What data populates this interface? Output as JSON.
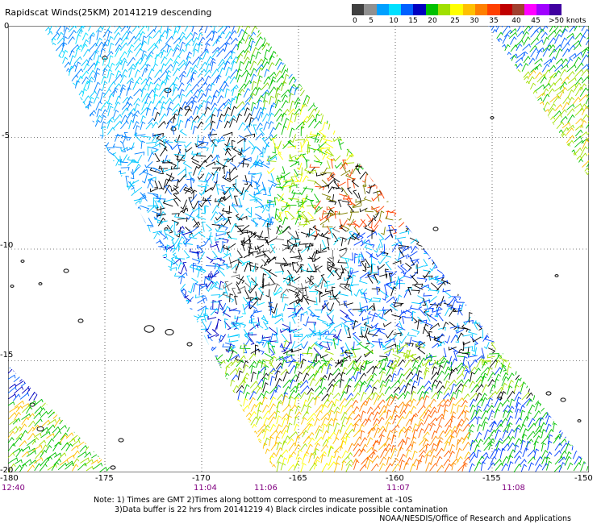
{
  "title": "Rapidscat Winds(25KM) 20141219 descending",
  "legend": {
    "colors": [
      "#404040",
      "#909090",
      "#00a0ff",
      "#00e0ff",
      "#0060ff",
      "#0000c0",
      "#00c000",
      "#a0e000",
      "#ffff00",
      "#ffc000",
      "#ff8000",
      "#ff4000",
      "#c00000",
      "#a0402f",
      "#ff00ff",
      "#a000ff",
      "#4000a0"
    ],
    "labels": [
      "0",
      "5",
      "10",
      "15",
      "20",
      "25",
      "30",
      "35",
      "40",
      "45",
      ">50 knots"
    ]
  },
  "axes": {
    "x_ticks": [
      "-180",
      "-175",
      "-170",
      "-165",
      "-160",
      "-155",
      "-150"
    ],
    "y_ticks": [
      "0",
      "-5",
      "-10",
      "-15",
      "-20"
    ]
  },
  "times": [
    "12:40",
    "11:04",
    "11:06",
    "11:07",
    "11:08"
  ],
  "notes": [
    "Note: 1) Times are GMT 2)Times along bottom correspond to measurement at -10S",
    "3)Data buffer is 22 hrs from 20141219 4) Black circles indicate possible contamination"
  ],
  "credit": "NOAA/NESDIS/Office of Research and Applications",
  "map_data": {
    "x_range": [
      -180,
      -150
    ],
    "y_range": [
      -20,
      0
    ],
    "swaths": [
      {
        "name": "main",
        "corners_lonlat": [
          [
            -178.2,
            0
          ],
          [
            -167.2,
            0
          ],
          [
            -149.8,
            -20
          ],
          [
            -166.2,
            -20
          ]
        ]
      },
      {
        "name": "upper-right",
        "corners_lonlat": [
          [
            -155.2,
            0
          ],
          [
            -150,
            0
          ],
          [
            -150,
            -6.8
          ]
        ]
      },
      {
        "name": "lower-left",
        "corners_lonlat": [
          [
            -180,
            -15.2
          ],
          [
            -174.5,
            -20
          ],
          [
            -180,
            -20
          ]
        ]
      }
    ]
  }
}
